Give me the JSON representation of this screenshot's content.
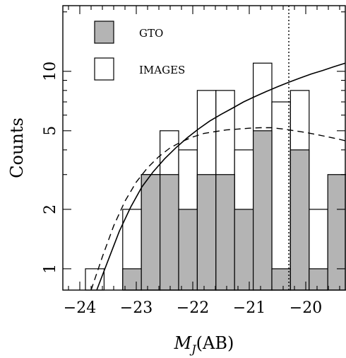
{
  "chart_data": {
    "type": "bar",
    "xlabel_main": "M",
    "xlabel_sub": "J",
    "xlabel_rest": "(AB)",
    "ylabel": "Counts",
    "xlim": [
      -24.3,
      -19.3
    ],
    "ylim": [
      0.78,
      21.5
    ],
    "yscale": "log",
    "bin_width": 0.33,
    "x_ticks": [
      {
        "value": -24,
        "label": "−24"
      },
      {
        "value": -23,
        "label": "−23"
      },
      {
        "value": -22,
        "label": "−22"
      },
      {
        "value": -21,
        "label": "−21"
      },
      {
        "value": -20,
        "label": "−20"
      }
    ],
    "y_ticks": [
      {
        "value": 1,
        "label": "1"
      },
      {
        "value": 2,
        "label": "2"
      },
      {
        "value": 5,
        "label": "5"
      },
      {
        "value": 10,
        "label": "10"
      }
    ],
    "bins": [
      -23.9,
      -23.57,
      -23.24,
      -22.91,
      -22.58,
      -22.25,
      -21.92,
      -21.59,
      -21.26,
      -20.93,
      -20.6,
      -20.27,
      -19.94
    ],
    "series": [
      {
        "name": "GTO",
        "color": "#b4b4b4",
        "values": [
          0,
          0,
          1,
          3,
          3,
          2,
          3,
          3,
          2,
          5,
          1,
          4,
          1
        ]
      },
      {
        "name": "IMAGES",
        "color": "#ffffff",
        "values": [
          1,
          0,
          2,
          3,
          5,
          4,
          8,
          8,
          4,
          11,
          7,
          8,
          2
        ]
      }
    ],
    "extra_bar": {
      "x": -19.61,
      "value": 3,
      "color": "#b4b4b4"
    },
    "vline": {
      "x": -20.3,
      "style": "dotted"
    },
    "solid_curve": [
      [
        -23.7,
        0.72
      ],
      [
        -23.5,
        1.1
      ],
      [
        -23.3,
        1.55
      ],
      [
        -23.1,
        2.05
      ],
      [
        -22.9,
        2.6
      ],
      [
        -22.7,
        3.1
      ],
      [
        -22.5,
        3.6
      ],
      [
        -22.3,
        4.1
      ],
      [
        -22.1,
        4.6
      ],
      [
        -21.9,
        5.1
      ],
      [
        -21.7,
        5.6
      ],
      [
        -21.5,
        6.05
      ],
      [
        -21.3,
        6.5
      ],
      [
        -21.1,
        7.0
      ],
      [
        -20.9,
        7.45
      ],
      [
        -20.7,
        7.9
      ],
      [
        -20.5,
        8.35
      ],
      [
        -20.3,
        8.8
      ],
      [
        -20.1,
        9.25
      ],
      [
        -19.9,
        9.7
      ],
      [
        -19.7,
        10.1
      ],
      [
        -19.5,
        10.55
      ],
      [
        -19.3,
        11.0
      ]
    ],
    "dashed_curve": [
      [
        -23.8,
        0.75
      ],
      [
        -23.6,
        1.15
      ],
      [
        -23.4,
        1.65
      ],
      [
        -23.2,
        2.2
      ],
      [
        -23.0,
        2.75
      ],
      [
        -22.8,
        3.25
      ],
      [
        -22.6,
        3.7
      ],
      [
        -22.4,
        4.1
      ],
      [
        -22.2,
        4.4
      ],
      [
        -22.0,
        4.65
      ],
      [
        -21.8,
        4.85
      ],
      [
        -21.6,
        4.95
      ],
      [
        -21.4,
        5.05
      ],
      [
        -21.2,
        5.1
      ],
      [
        -21.0,
        5.15
      ],
      [
        -20.8,
        5.18
      ],
      [
        -20.6,
        5.18
      ],
      [
        -20.4,
        5.1
      ],
      [
        -20.2,
        5.0
      ],
      [
        -20.0,
        4.9
      ],
      [
        -19.8,
        4.78
      ],
      [
        -19.6,
        4.65
      ],
      [
        -19.4,
        4.52
      ],
      [
        -19.3,
        4.45
      ]
    ],
    "legend": {
      "placement": "top-left"
    }
  }
}
